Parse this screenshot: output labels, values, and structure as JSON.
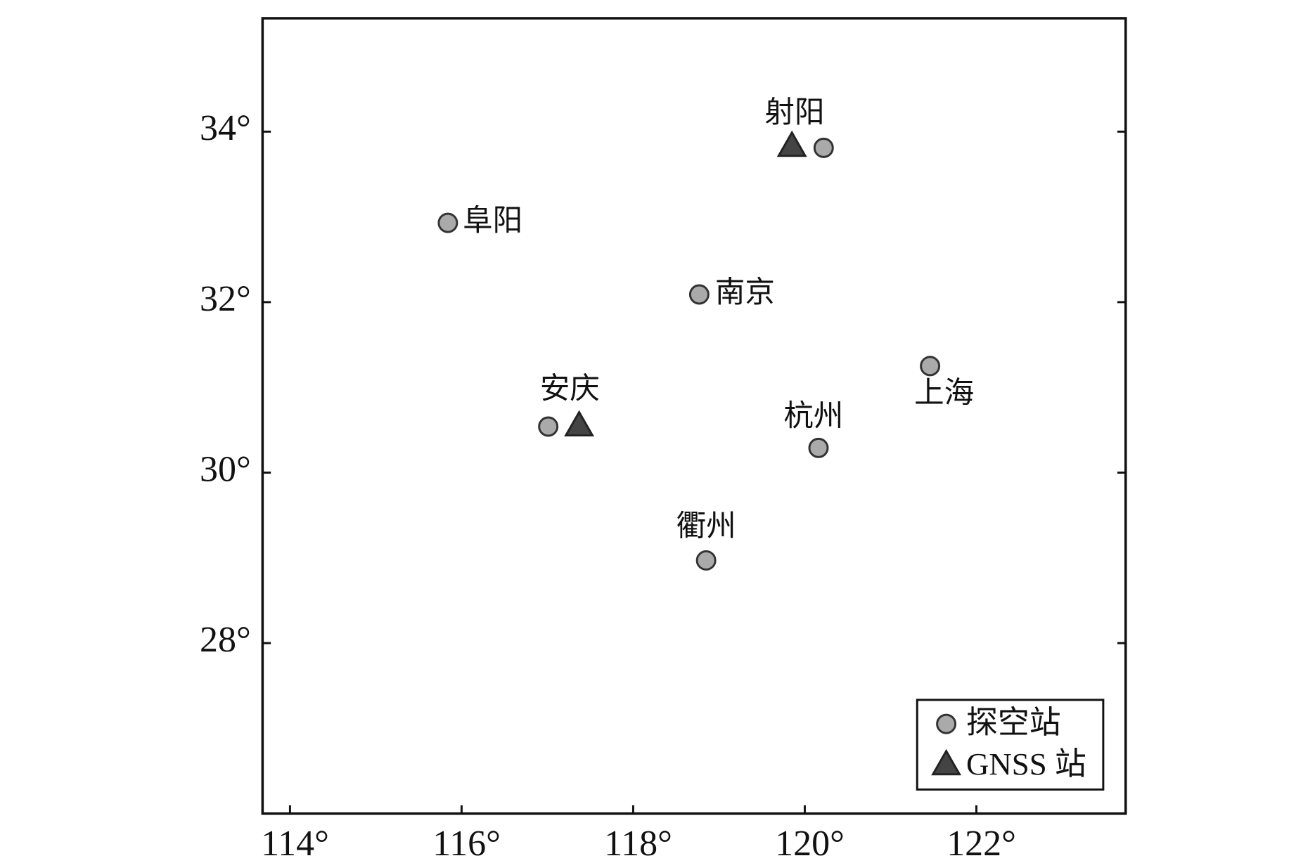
{
  "chart_data": {
    "type": "scatter",
    "xlim": [
      113.68,
      123.74
    ],
    "ylim": [
      26.0,
      35.33
    ],
    "xticks": [
      {
        "value": 114,
        "label": "114°"
      },
      {
        "value": 116,
        "label": "116°"
      },
      {
        "value": 118,
        "label": "118°"
      },
      {
        "value": 120,
        "label": "120°"
      },
      {
        "value": 122,
        "label": "122°"
      }
    ],
    "yticks": [
      {
        "value": 28,
        "label": "28°"
      },
      {
        "value": 30,
        "label": "30°"
      },
      {
        "value": 32,
        "label": "32°"
      },
      {
        "value": 34,
        "label": "34°"
      }
    ],
    "legend": "lower right",
    "series": [
      {
        "name": "探空站",
        "marker": "circle",
        "color": "#aaaaaa",
        "x": [
          120.22,
          115.84,
          118.77,
          121.46,
          117.01,
          120.16,
          118.85
        ],
        "values": [
          33.81,
          32.93,
          32.09,
          31.25,
          30.54,
          30.29,
          28.97
        ],
        "point_labels": [
          "射阳",
          "阜阳",
          "南京",
          "上海",
          "安庆",
          "杭州",
          "衢州"
        ]
      },
      {
        "name": "GNSS 站",
        "marker": "triangle",
        "color": "#444444",
        "x": [
          119.85,
          117.37
        ],
        "values": [
          33.82,
          30.54
        ]
      }
    ]
  }
}
